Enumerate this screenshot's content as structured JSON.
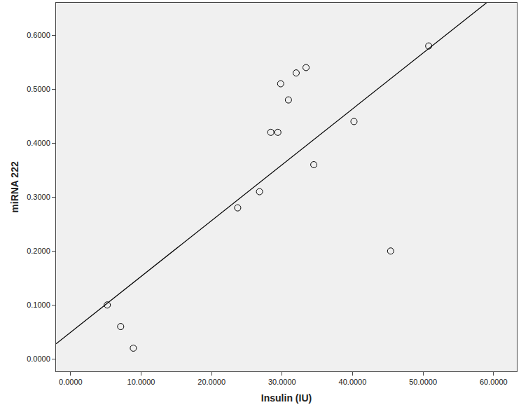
{
  "chart_data": {
    "type": "scatter",
    "x_label": "Insulin (IU)",
    "y_label": "miRNA 222",
    "xlim": [
      -2.07,
      63.3
    ],
    "ylim": [
      -0.023,
      0.66
    ],
    "xticks": [
      {
        "value": 0,
        "label": "0.0000"
      },
      {
        "value": 10,
        "label": "10.0000"
      },
      {
        "value": 20,
        "label": "20.0000"
      },
      {
        "value": 30,
        "label": "30.0000"
      },
      {
        "value": 40,
        "label": "40.0000"
      },
      {
        "value": 50,
        "label": "50.0000"
      },
      {
        "value": 60,
        "label": "60.0000"
      }
    ],
    "yticks": [
      {
        "value": 0,
        "label": "0.0000"
      },
      {
        "value": 0.1,
        "label": "0.1000"
      },
      {
        "value": 0.2,
        "label": "0.2000"
      },
      {
        "value": 0.3,
        "label": "0.3000"
      },
      {
        "value": 0.4,
        "label": "0.4000"
      },
      {
        "value": 0.5,
        "label": "0.5000"
      },
      {
        "value": 0.6,
        "label": "0.6000"
      }
    ],
    "grid": false,
    "series": [
      {
        "type": "scatter",
        "marker": "circle-open",
        "color": "#000000",
        "x": [
          5.2,
          7.1,
          8.9,
          23.7,
          26.8,
          28.4,
          29.4,
          29.8,
          30.9,
          32.0,
          33.4,
          34.5,
          40.2,
          45.4,
          50.8
        ],
        "values": [
          0.1,
          0.06,
          0.02,
          0.28,
          0.31,
          0.42,
          0.42,
          0.51,
          0.48,
          0.53,
          0.54,
          0.36,
          0.44,
          0.2,
          0.58
        ]
      },
      {
        "type": "line",
        "line_style": "solid",
        "color": "#000000",
        "x": [
          -2.07,
          59.0
        ],
        "values": [
          0.028,
          0.66
        ]
      }
    ]
  }
}
